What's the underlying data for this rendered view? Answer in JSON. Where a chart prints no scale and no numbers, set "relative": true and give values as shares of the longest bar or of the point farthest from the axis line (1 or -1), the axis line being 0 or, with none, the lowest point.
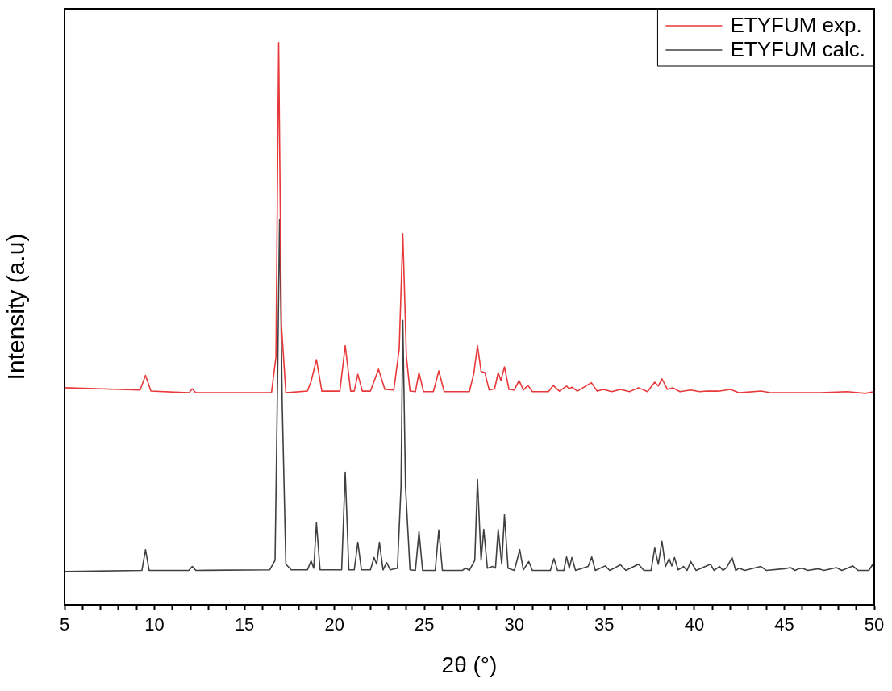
{
  "chart_data": {
    "type": "line",
    "relative": true,
    "xlabel": "2θ (°)",
    "ylabel": "Intensity (a.u)",
    "xlim": [
      5,
      50
    ],
    "xticks": [
      5,
      {
        "value": 6,
        "label": null
      },
      {
        "value": 7,
        "label": null
      },
      {
        "value": 8,
        "label": null
      },
      {
        "value": 9,
        "label": null
      },
      10,
      {
        "value": 11,
        "label": null
      },
      {
        "value": 12,
        "label": null
      },
      {
        "value": 13,
        "label": null
      },
      {
        "value": 14,
        "label": null
      },
      15,
      {
        "value": 16,
        "label": null
      },
      {
        "value": 17,
        "label": null
      },
      {
        "value": 18,
        "label": null
      },
      {
        "value": 19,
        "label": null
      },
      20,
      {
        "value": 21,
        "label": null
      },
      {
        "value": 22,
        "label": null
      },
      {
        "value": 23,
        "label": null
      },
      {
        "value": 24,
        "label": null
      },
      25,
      {
        "value": 26,
        "label": null
      },
      {
        "value": 27,
        "label": null
      },
      {
        "value": 28,
        "label": null
      },
      {
        "value": 29,
        "label": null
      },
      30,
      {
        "value": 31,
        "label": null
      },
      {
        "value": 32,
        "label": null
      },
      {
        "value": 33,
        "label": null
      },
      {
        "value": 34,
        "label": null
      },
      35,
      {
        "value": 36,
        "label": null
      },
      {
        "value": 37,
        "label": null
      },
      {
        "value": 38,
        "label": null
      },
      {
        "value": 39,
        "label": null
      },
      40,
      {
        "value": 41,
        "label": null
      },
      {
        "value": 42,
        "label": null
      },
      {
        "value": 43,
        "label": null
      },
      {
        "value": 44,
        "label": null
      },
      45,
      {
        "value": 46,
        "label": null
      },
      {
        "value": 47,
        "label": null
      },
      {
        "value": 48,
        "label": null
      },
      {
        "value": 49,
        "label": null
      },
      50
    ],
    "legend": "top right",
    "marker": "none",
    "line_style": "solid",
    "grid": false,
    "series": [
      {
        "name": "ETYFUM exp.",
        "color": "#e8393a",
        "x": [
          5.0,
          9.2,
          9.5,
          9.8,
          11.9,
          12.1,
          12.3,
          16.5,
          16.75,
          16.9,
          17.05,
          17.3,
          18.5,
          18.7,
          19.0,
          19.3,
          20.3,
          20.6,
          20.9,
          21.1,
          21.3,
          21.55,
          22.0,
          22.45,
          22.8,
          23.3,
          23.6,
          23.8,
          24.0,
          24.2,
          24.5,
          24.7,
          24.95,
          25.5,
          25.8,
          26.1,
          27.5,
          27.75,
          27.95,
          28.15,
          28.36,
          28.6,
          28.9,
          29.1,
          29.25,
          29.45,
          29.7,
          30.0,
          30.26,
          30.5,
          30.76,
          31.0,
          31.9,
          32.16,
          32.5,
          32.9,
          33.05,
          33.2,
          33.5,
          34.28,
          34.6,
          34.96,
          35.4,
          35.9,
          36.4,
          36.9,
          37.4,
          37.8,
          38.0,
          38.2,
          38.5,
          38.8,
          39.2,
          39.8,
          40.3,
          40.7,
          41.4,
          42.0,
          42.5,
          43.7,
          44.3,
          45.5,
          47.0,
          48.5,
          49.5,
          50.0
        ],
        "values": [
          0.386,
          0.382,
          0.408,
          0.38,
          0.377,
          0.384,
          0.377,
          0.377,
          0.441,
          1,
          0.499,
          0.377,
          0.38,
          0.397,
          0.436,
          0.38,
          0.38,
          0.461,
          0.38,
          0.38,
          0.41,
          0.38,
          0.38,
          0.419,
          0.383,
          0.382,
          0.455,
          0.66,
          0.441,
          0.38,
          0.379,
          0.413,
          0.379,
          0.379,
          0.416,
          0.379,
          0.379,
          0.412,
          0.461,
          0.415,
          0.413,
          0.382,
          0.384,
          0.413,
          0.399,
          0.423,
          0.383,
          0.382,
          0.399,
          0.382,
          0.39,
          0.379,
          0.379,
          0.39,
          0.38,
          0.389,
          0.384,
          0.387,
          0.38,
          0.395,
          0.38,
          0.383,
          0.379,
          0.383,
          0.379,
          0.386,
          0.379,
          0.396,
          0.389,
          0.402,
          0.383,
          0.386,
          0.379,
          0.382,
          0.379,
          0.38,
          0.38,
          0.383,
          0.377,
          0.38,
          0.377,
          0.377,
          0.377,
          0.379,
          0.376,
          0.379
        ]
      },
      {
        "name": "ETYFUM calc.",
        "color": "#404040",
        "x": [
          5.0,
          9.3,
          9.5,
          9.7,
          11.9,
          12.1,
          12.3,
          16.4,
          16.7,
          16.85,
          16.95,
          17.1,
          17.3,
          17.6,
          18.5,
          18.7,
          18.85,
          19.0,
          19.2,
          20.4,
          20.6,
          20.8,
          21.1,
          21.3,
          21.5,
          22.0,
          22.2,
          22.35,
          22.5,
          22.7,
          22.9,
          23.1,
          23.5,
          23.7,
          23.8,
          23.95,
          24.2,
          24.5,
          24.7,
          24.9,
          25.6,
          25.8,
          26.0,
          27.1,
          27.3,
          27.5,
          27.8,
          27.95,
          28.15,
          28.3,
          28.5,
          28.8,
          28.95,
          29.1,
          29.3,
          29.45,
          29.65,
          30.0,
          30.3,
          30.5,
          30.8,
          31.0,
          32.0,
          32.2,
          32.4,
          32.75,
          32.9,
          33.05,
          33.2,
          33.4,
          34.1,
          34.3,
          34.5,
          35.05,
          35.3,
          35.9,
          36.2,
          36.9,
          37.2,
          37.6,
          37.8,
          38.0,
          38.2,
          38.4,
          38.6,
          38.75,
          38.9,
          39.1,
          39.4,
          39.6,
          39.8,
          40.1,
          40.9,
          41.1,
          41.4,
          41.6,
          41.8,
          42.1,
          42.3,
          42.5,
          42.8,
          43.7,
          44.0,
          45.0,
          45.35,
          45.6,
          45.8,
          46.0,
          46.3,
          46.9,
          47.2,
          47.9,
          48.2,
          48.8,
          49.1,
          49.7,
          49.9,
          50.0
        ],
        "values": [
          0.059,
          0.061,
          0.098,
          0.061,
          0.061,
          0.068,
          0.061,
          0.062,
          0.079,
          0.426,
          0.686,
          0.354,
          0.072,
          0.062,
          0.062,
          0.078,
          0.065,
          0.146,
          0.062,
          0.062,
          0.236,
          0.062,
          0.062,
          0.111,
          0.062,
          0.062,
          0.084,
          0.072,
          0.111,
          0.062,
          0.075,
          0.062,
          0.065,
          0.21,
          0.506,
          0.21,
          0.062,
          0.061,
          0.13,
          0.061,
          0.061,
          0.133,
          0.061,
          0.061,
          0.065,
          0.061,
          0.079,
          0.223,
          0.079,
          0.134,
          0.065,
          0.068,
          0.065,
          0.134,
          0.072,
          0.16,
          0.065,
          0.061,
          0.098,
          0.062,
          0.077,
          0.061,
          0.061,
          0.082,
          0.061,
          0.061,
          0.085,
          0.065,
          0.084,
          0.061,
          0.068,
          0.085,
          0.061,
          0.069,
          0.061,
          0.071,
          0.061,
          0.072,
          0.061,
          0.061,
          0.101,
          0.072,
          0.113,
          0.068,
          0.082,
          0.069,
          0.084,
          0.062,
          0.068,
          0.061,
          0.077,
          0.061,
          0.072,
          0.061,
          0.068,
          0.061,
          0.066,
          0.084,
          0.061,
          0.065,
          0.061,
          0.068,
          0.061,
          0.064,
          0.066,
          0.061,
          0.064,
          0.065,
          0.061,
          0.064,
          0.061,
          0.066,
          0.061,
          0.069,
          0.061,
          0.061,
          0.071,
          0.065
        ]
      }
    ]
  }
}
